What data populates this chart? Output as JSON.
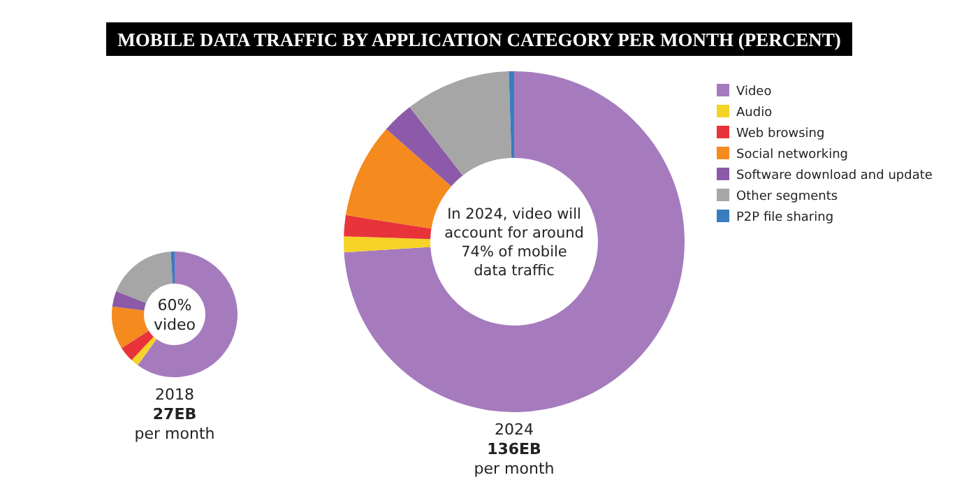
{
  "chart_data": [
    {
      "type": "donut",
      "title": "MOBILE DATA TRAFFIC BY APPLICATION CATEGORY PER MONTH (PERCENT)",
      "categories": [
        null,
        null,
        null,
        null,
        null,
        null,
        null
      ],
      "values": [
        60,
        2,
        4,
        11,
        4,
        18,
        1
      ],
      "colors": [
        "#a57bbd",
        "#f5d327",
        "#e8333a",
        "#f58a1f",
        "#8c5aa8",
        "#a6a6a6",
        "#3a7cc0"
      ],
      "annotations": [
        "60%",
        "video",
        "2018",
        "27EB",
        "per month"
      ]
    },
    {
      "type": "donut",
      "categories": [
        "Video",
        "Audio",
        "Web browsing",
        "Social networking",
        "Software download and update",
        "Other segments",
        "P2P file sharing"
      ],
      "values": [
        74,
        1.5,
        2,
        9,
        3,
        10,
        0.5
      ],
      "colors": [
        "#a57bbd",
        "#f5d327",
        "#e8333a",
        "#f58a1f",
        "#8c5aa8",
        "#a6a6a6",
        "#3a7cc0"
      ],
      "legend": "right",
      "annotations": [
        "In 2024, video will",
        "account for around",
        "74% of mobile",
        "data traffic",
        "2024",
        "136EB",
        "per month"
      ]
    }
  ]
}
